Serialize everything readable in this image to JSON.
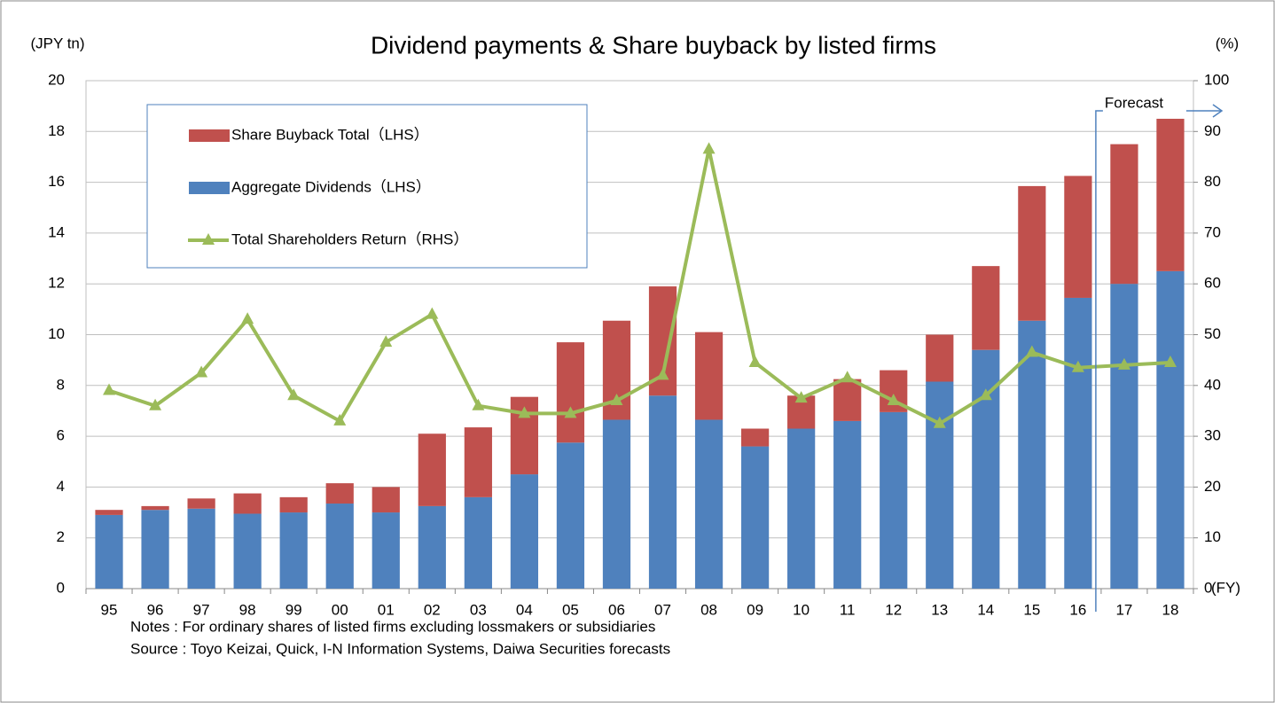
{
  "chart_data": {
    "type": "bar",
    "stacked": true,
    "title": "Dividend payments & Share buyback by listed firms",
    "y_label": "(JPY tn)",
    "y2_label": "(%)",
    "x_label": "(FY)",
    "annotation": "Forecast",
    "notes": [
      "Notes : For ordinary shares of listed firms excluding lossmakers or subsidiaries",
      "Source : Toyo Keizai, Quick, I-N Information Systems, Daiwa Securities forecasts"
    ],
    "categories": [
      "95",
      "96",
      "97",
      "98",
      "99",
      "00",
      "01",
      "02",
      "03",
      "04",
      "05",
      "06",
      "07",
      "08",
      "09",
      "10",
      "11",
      "12",
      "13",
      "14",
      "15",
      "16",
      "17",
      "18"
    ],
    "series": [
      {
        "name": "Share Buyback Total（LHS）",
        "type": "bar",
        "color": "#c0504d",
        "values": [
          0.2,
          0.15,
          0.4,
          0.8,
          0.6,
          0.8,
          1.0,
          2.85,
          2.75,
          3.05,
          3.95,
          3.9,
          4.3,
          3.45,
          0.7,
          1.3,
          1.65,
          1.65,
          1.85,
          3.3,
          5.3,
          4.8,
          5.5,
          6.0
        ]
      },
      {
        "name": "Aggregate Dividends（LHS）",
        "type": "bar",
        "color": "#4f81bd",
        "values": [
          2.9,
          3.1,
          3.15,
          2.95,
          3.0,
          3.35,
          3.0,
          3.25,
          3.6,
          4.5,
          5.75,
          6.65,
          7.6,
          6.65,
          5.6,
          6.3,
          6.6,
          6.95,
          8.15,
          9.4,
          10.55,
          11.45,
          12.0,
          12.5
        ]
      },
      {
        "name": "Total Shareholders Return（RHS）",
        "type": "line",
        "axis": "y2",
        "color": "#9bbb59",
        "values": [
          39,
          36,
          42.5,
          53,
          38,
          33,
          48.5,
          54,
          36,
          34.5,
          34.5,
          37,
          42,
          86.5,
          44.5,
          37.5,
          41.5,
          37,
          32.5,
          38,
          46.5,
          43.5,
          44,
          44.5
        ]
      }
    ],
    "ylim": [
      0,
      20
    ],
    "yticks": [
      0,
      2,
      4,
      6,
      8,
      10,
      12,
      14,
      16,
      18,
      20
    ],
    "y2lim": [
      0,
      100
    ],
    "y2ticks": [
      0,
      10,
      20,
      30,
      40,
      50,
      60,
      70,
      80,
      90,
      100
    ],
    "grid": true,
    "legend": "upper left"
  }
}
